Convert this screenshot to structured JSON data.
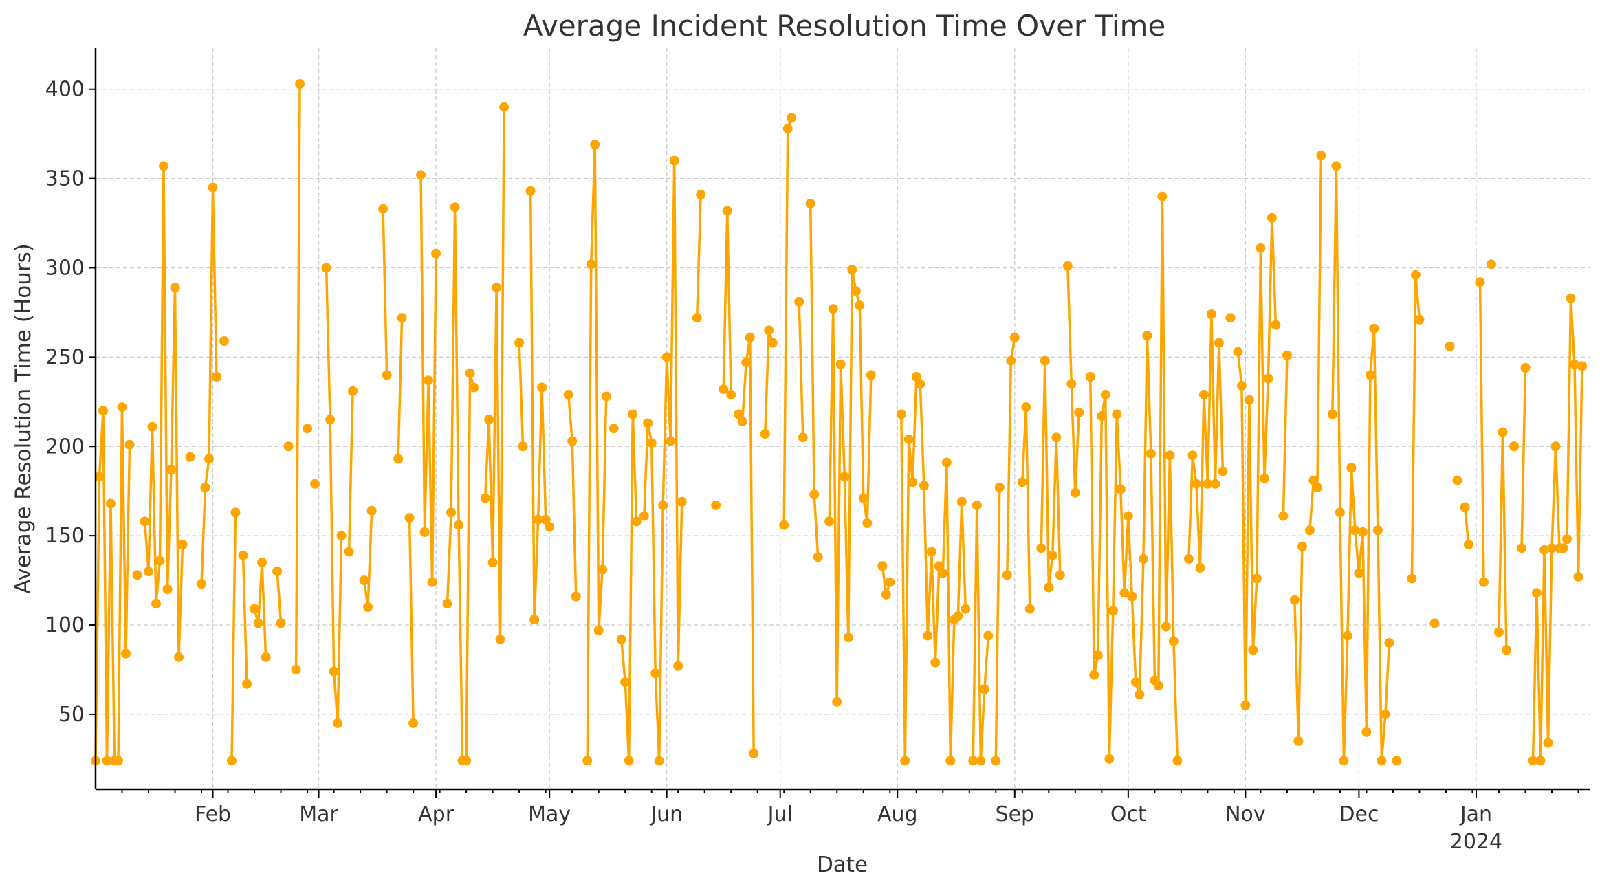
{
  "chart_data": {
    "type": "line",
    "title": "Average Incident Resolution Time Over Time",
    "xlabel": "Date",
    "ylabel": "Average Resolution Time (Hours)",
    "x_range": [
      "2023-01-01",
      "2024-01-31"
    ],
    "ylim": [
      8,
      423
    ],
    "y_ticks": [
      50,
      100,
      150,
      200,
      250,
      300,
      350,
      400
    ],
    "x_ticks": [
      {
        "date": "2023-02-01",
        "label": "Feb"
      },
      {
        "date": "2023-03-01",
        "label": "Mar"
      },
      {
        "date": "2023-04-01",
        "label": "Apr"
      },
      {
        "date": "2023-05-01",
        "label": "May"
      },
      {
        "date": "2023-06-01",
        "label": "Jun"
      },
      {
        "date": "2023-07-01",
        "label": "Jul"
      },
      {
        "date": "2023-08-01",
        "label": "Aug"
      },
      {
        "date": "2023-09-01",
        "label": "Sep"
      },
      {
        "date": "2023-10-01",
        "label": "Oct"
      },
      {
        "date": "2023-11-01",
        "label": "Nov"
      },
      {
        "date": "2023-12-01",
        "label": "Dec"
      },
      {
        "date": "2024-01-01",
        "label": "Jan",
        "sublabel": "2024"
      }
    ],
    "grid": true,
    "line_color": "#FFA500",
    "series": [
      {
        "start_date": "2023-01-01",
        "values": [
          24,
          183,
          220,
          24,
          168,
          24,
          24,
          222,
          84,
          201,
          null,
          128,
          null,
          158,
          130,
          211,
          112,
          136,
          357,
          120,
          187,
          289,
          82,
          145,
          null,
          194,
          null,
          null,
          123,
          177,
          193,
          345,
          239,
          null,
          259,
          null,
          24,
          163,
          null,
          139,
          67,
          null,
          109,
          101,
          135,
          82,
          null,
          null,
          130,
          101,
          null,
          200,
          null,
          75,
          403,
          null,
          210,
          null,
          179,
          null,
          null,
          300,
          215,
          74,
          45,
          150,
          null,
          141,
          231,
          null,
          null,
          125,
          110,
          164,
          null,
          null,
          333,
          240,
          null,
          null,
          193,
          272,
          null,
          160,
          45,
          null,
          352,
          152,
          237,
          124,
          308,
          null,
          null,
          112,
          163,
          334,
          156,
          24,
          24,
          241,
          233,
          null,
          null,
          171,
          215,
          135,
          289,
          92,
          390,
          null,
          null,
          null,
          258,
          200,
          null,
          343,
          103,
          159,
          233,
          159,
          155,
          null,
          null,
          null,
          null,
          229,
          203,
          116,
          null,
          null,
          24,
          302,
          369,
          97,
          131,
          228,
          null,
          210,
          null,
          92,
          68,
          24,
          218,
          158,
          null,
          161,
          213,
          202,
          73,
          24,
          167,
          250,
          203,
          360,
          77,
          169,
          null,
          null,
          null,
          272,
          341,
          null,
          null,
          null,
          167,
          null,
          232,
          332,
          229,
          null,
          218,
          214,
          247,
          261,
          28,
          null,
          null,
          207,
          265,
          258,
          null,
          null,
          156,
          378,
          384,
          null,
          281,
          205,
          null,
          336,
          173,
          138,
          null,
          null,
          158,
          277,
          57,
          246,
          183,
          93,
          299,
          287,
          279,
          171,
          157,
          240,
          null,
          null,
          133,
          117,
          124,
          null,
          null,
          218,
          24,
          204,
          180,
          239,
          235,
          178,
          94,
          141,
          79,
          133,
          129,
          191,
          24,
          103,
          105,
          169,
          109,
          null,
          24,
          167,
          24,
          64,
          94,
          null,
          24,
          177,
          null,
          128,
          248,
          261,
          null,
          180,
          222,
          109,
          null,
          null,
          143,
          248,
          121,
          139,
          205,
          128,
          null,
          301,
          235,
          174,
          219,
          null,
          null,
          239,
          72,
          83,
          217,
          229,
          25,
          108,
          218,
          176,
          118,
          161,
          116,
          68,
          61,
          137,
          262,
          196,
          69,
          66,
          340,
          99,
          195,
          91,
          24,
          null,
          null,
          137,
          195,
          179,
          132,
          229,
          179,
          274,
          179,
          258,
          186,
          null,
          272,
          null,
          253,
          234,
          55,
          226,
          86,
          126,
          311,
          182,
          238,
          328,
          268,
          null,
          161,
          251,
          null,
          114,
          35,
          144,
          null,
          153,
          181,
          177,
          363,
          null,
          null,
          218,
          357,
          163,
          24,
          94,
          188,
          153,
          129,
          152,
          40,
          240,
          266,
          153,
          24,
          50,
          90,
          null,
          24,
          null,
          null,
          null,
          126,
          296,
          271,
          null,
          null,
          null,
          101,
          null,
          null,
          null,
          256,
          null,
          181,
          null,
          166,
          145,
          null,
          null,
          292,
          124,
          null,
          302,
          null,
          96,
          208,
          86,
          null,
          200,
          null,
          143,
          244,
          null,
          24,
          118,
          24,
          142,
          34,
          143,
          200,
          143,
          143,
          148,
          283,
          246,
          127,
          245
        ]
      }
    ]
  }
}
